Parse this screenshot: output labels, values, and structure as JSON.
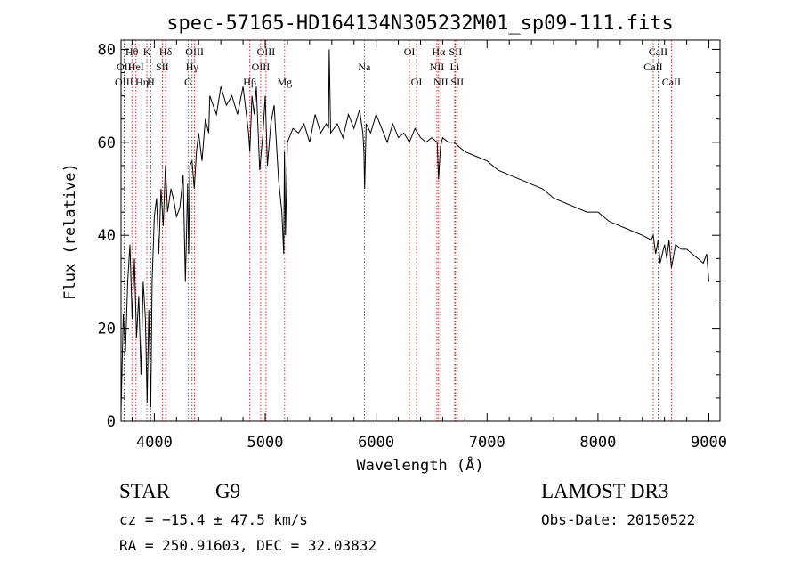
{
  "chart_data": {
    "type": "line",
    "title": "spec-57165-HD164134N305232M01_sp09-111.fits",
    "xlabel": "Wavelength (Å)",
    "ylabel": "Flux (relative)",
    "xlim": [
      3700,
      9100
    ],
    "ylim": [
      0,
      82
    ],
    "xticks": [
      4000,
      5000,
      6000,
      7000,
      8000,
      9000
    ],
    "yticks": [
      0,
      20,
      40,
      60,
      80
    ],
    "series": [
      {
        "name": "flux",
        "x": [
          3700,
          3720,
          3740,
          3760,
          3780,
          3800,
          3820,
          3840,
          3860,
          3880,
          3900,
          3920,
          3935,
          3950,
          3968,
          3980,
          4000,
          4020,
          4040,
          4060,
          4080,
          4100,
          4120,
          4150,
          4180,
          4200,
          4230,
          4260,
          4280,
          4300,
          4310,
          4320,
          4340,
          4360,
          4380,
          4400,
          4430,
          4460,
          4490,
          4500,
          4530,
          4560,
          4600,
          4650,
          4700,
          4750,
          4800,
          4850,
          4861,
          4880,
          4900,
          4920,
          4950,
          4980,
          5000,
          5020,
          5050,
          5080,
          5100,
          5120,
          5150,
          5167,
          5173,
          5183,
          5200,
          5250,
          5300,
          5350,
          5400,
          5450,
          5500,
          5550,
          5570,
          5577,
          5590,
          5650,
          5700,
          5750,
          5800,
          5850,
          5880,
          5890,
          5896,
          5910,
          5950,
          6000,
          6050,
          6100,
          6150,
          6200,
          6250,
          6300,
          6350,
          6400,
          6450,
          6500,
          6550,
          6563,
          6580,
          6600,
          6650,
          6700,
          6750,
          6800,
          6900,
          7000,
          7100,
          7200,
          7300,
          7400,
          7500,
          7600,
          7700,
          7800,
          7900,
          8000,
          8100,
          8200,
          8300,
          8400,
          8480,
          8498,
          8520,
          8542,
          8560,
          8600,
          8620,
          8640,
          8662,
          8700,
          8750,
          8800,
          8850,
          8900,
          8950,
          8980,
          9000
        ],
        "values": [
          2,
          23,
          15,
          30,
          38,
          22,
          35,
          18,
          27,
          10,
          30,
          22,
          4,
          24,
          3,
          30,
          44,
          48,
          36,
          50,
          42,
          55,
          45,
          50,
          47,
          44,
          46,
          53,
          30,
          51,
          36,
          55,
          56,
          50,
          58,
          62,
          56,
          65,
          62,
          70,
          68,
          66,
          72,
          68,
          70,
          66,
          72,
          62,
          58,
          70,
          66,
          72,
          54,
          62,
          70,
          55,
          64,
          68,
          60,
          52,
          45,
          36,
          58,
          40,
          60,
          63,
          62,
          64,
          60,
          66,
          62,
          64,
          63,
          80,
          62,
          64,
          61,
          66,
          63,
          67,
          62,
          58,
          50,
          64,
          62,
          66,
          63,
          60,
          64,
          61,
          62,
          60,
          63,
          61,
          60,
          61,
          60,
          52,
          59,
          61,
          60,
          60,
          59,
          58,
          57,
          56,
          54,
          53,
          52,
          51,
          50,
          48,
          47,
          46,
          45,
          45,
          43,
          42,
          41,
          40,
          39,
          40,
          36,
          39,
          34,
          38,
          35,
          39,
          33,
          38,
          37,
          37,
          36,
          35,
          34,
          36,
          30
        ]
      }
    ],
    "lines": [
      {
        "name": "OII",
        "x": 3727,
        "row": 2
      },
      {
        "name": "OIII",
        "x": 3727,
        "row": 3
      },
      {
        "name": "Hθ",
        "x": 3798,
        "row": 1
      },
      {
        "name": "HeI",
        "x": 3835,
        "row": 2
      },
      {
        "name": "Hη",
        "x": 3889,
        "row": 3
      },
      {
        "name": "K",
        "x": 3933,
        "row": 1
      },
      {
        "name": "SII",
        "x": 4072,
        "row": 2
      },
      {
        "name": "H",
        "x": 3968,
        "row": 3
      },
      {
        "name": "Hδ",
        "x": 4102,
        "row": 1
      },
      {
        "name": "OIII",
        "x": 4363,
        "row": 1
      },
      {
        "name": "Hγ",
        "x": 4340,
        "row": 2
      },
      {
        "name": "G",
        "x": 4304,
        "row": 3
      },
      {
        "name": "Hβ",
        "x": 4861,
        "row": 3
      },
      {
        "name": "OIII",
        "x": 5007,
        "row": 1
      },
      {
        "name": "OIII",
        "x": 4959,
        "row": 2
      },
      {
        "name": "Mg",
        "x": 5175,
        "row": 3
      },
      {
        "name": "Na",
        "x": 5893,
        "row": 2
      },
      {
        "name": "OI",
        "x": 6300,
        "row": 1
      },
      {
        "name": "OI",
        "x": 6364,
        "row": 3
      },
      {
        "name": "Hα",
        "x": 6563,
        "row": 1
      },
      {
        "name": "SII",
        "x": 6716,
        "row": 1
      },
      {
        "name": "NII",
        "x": 6548,
        "row": 2
      },
      {
        "name": "Li",
        "x": 6708,
        "row": 2
      },
      {
        "name": "NII",
        "x": 6583,
        "row": 3
      },
      {
        "name": "SII",
        "x": 6731,
        "row": 3
      },
      {
        "name": "CaII",
        "x": 8542,
        "row": 1
      },
      {
        "name": "CaII",
        "x": 8498,
        "row": 2
      },
      {
        "name": "CaII",
        "x": 8662,
        "row": 3
      }
    ]
  },
  "info": {
    "obj_class": "STAR",
    "subclass": "G9",
    "survey": "LAMOST DR3",
    "cz": "cz = −15.4 ± 47.5 km/s",
    "obs_date": "Obs-Date: 20150522",
    "coords": "RA = 250.91603, DEC =  32.03832"
  },
  "colors": {
    "spectrum": "#000000",
    "lines": "#c00000",
    "axis": "#000000"
  }
}
